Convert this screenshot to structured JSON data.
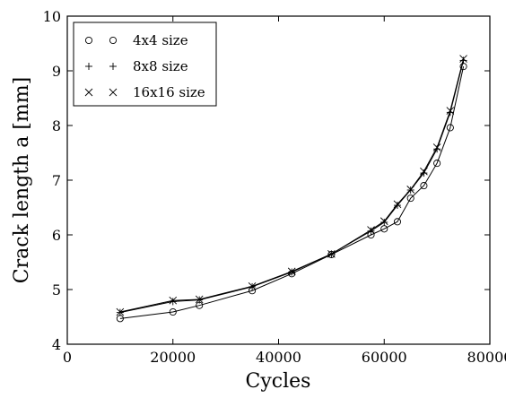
{
  "chart_data": {
    "type": "line",
    "title": "",
    "xlabel": "Cycles",
    "ylabel": "Crack length a [mm]",
    "xlim": [
      0,
      80000
    ],
    "ylim": [
      4,
      10
    ],
    "xticks": [
      0,
      20000,
      40000,
      60000,
      80000
    ],
    "xtick_labels": [
      "0",
      "20000",
      "40000",
      "60000",
      "80000"
    ],
    "yticks": [
      4,
      5,
      6,
      7,
      8,
      9,
      10
    ],
    "ytick_labels": [
      "4",
      "5",
      "6",
      "7",
      "8",
      "9",
      "10"
    ],
    "grid": false,
    "legend_position": "top-left",
    "series": [
      {
        "name": "4x4 size",
        "marker": "circle",
        "color": "#000000",
        "x": [
          10000,
          20000,
          25000,
          35000,
          42500,
          50000,
          57500,
          60000,
          62500,
          65000,
          67500,
          70000,
          72500,
          75000
        ],
        "y": [
          4.47,
          4.59,
          4.71,
          4.98,
          5.29,
          5.64,
          6.0,
          6.11,
          6.24,
          6.67,
          6.9,
          7.31,
          7.96,
          9.08
        ]
      },
      {
        "name": "8x8 size",
        "marker": "plus",
        "color": "#000000",
        "x": [
          10000,
          20000,
          25000,
          35000,
          42500,
          50000,
          57500,
          60000,
          62500,
          65000,
          67500,
          70000,
          72500,
          75000
        ],
        "y": [
          4.58,
          4.78,
          4.81,
          5.05,
          5.32,
          5.65,
          6.07,
          6.23,
          6.54,
          6.82,
          7.13,
          7.57,
          8.24,
          9.19
        ]
      },
      {
        "name": "16x16 size",
        "marker": "x",
        "color": "#000000",
        "x": [
          10000,
          20000,
          25000,
          35000,
          42500,
          50000,
          57500,
          60000,
          62500,
          65000,
          67500,
          70000,
          72500,
          75000
        ],
        "y": [
          4.59,
          4.8,
          4.82,
          5.06,
          5.33,
          5.65,
          6.09,
          6.25,
          6.56,
          6.83,
          7.16,
          7.6,
          8.27,
          9.22
        ]
      }
    ]
  }
}
